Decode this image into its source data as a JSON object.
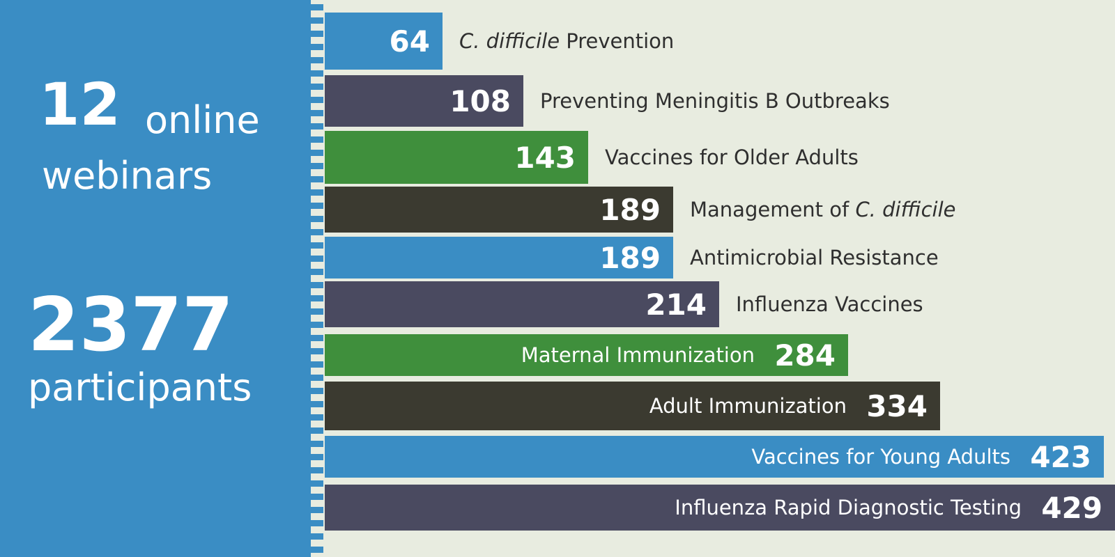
{
  "stats": {
    "webinars": {
      "number": "12",
      "word1": "online",
      "word2": "webinars"
    },
    "participants": {
      "number": "2377",
      "word": "participants"
    }
  },
  "colors": {
    "left_panel": "#3a8dc4",
    "background": "#e8ece0",
    "blue": "#3a8dc4",
    "slate": "#4a4a60",
    "green": "#3f8f3c",
    "dark": "#3b3a30",
    "label_dark": "#2f2f2f",
    "label_light": "#ffffff"
  },
  "chart_data": {
    "type": "bar",
    "orientation": "horizontal",
    "title": "",
    "xlabel": "",
    "ylabel": "",
    "grid": false,
    "xlim": [
      0,
      429
    ],
    "bars": [
      {
        "value": 64,
        "label_parts": [
          {
            "text": "C. difficile",
            "italic": true
          },
          {
            "text": " Prevention",
            "italic": false
          }
        ],
        "color": "blue"
      },
      {
        "value": 108,
        "label_parts": [
          {
            "text": "Preventing Meningitis B Outbreaks",
            "italic": false
          }
        ],
        "color": "slate"
      },
      {
        "value": 143,
        "label_parts": [
          {
            "text": "Vaccines for Older Adults",
            "italic": false
          }
        ],
        "color": "green"
      },
      {
        "value": 189,
        "label_parts": [
          {
            "text": "Management of ",
            "italic": false
          },
          {
            "text": "C. difficile",
            "italic": true
          }
        ],
        "color": "dark"
      },
      {
        "value": 189,
        "label_parts": [
          {
            "text": "Antimicrobial Resistance",
            "italic": false
          }
        ],
        "color": "blue"
      },
      {
        "value": 214,
        "label_parts": [
          {
            "text": "Influenza Vaccines",
            "italic": false
          }
        ],
        "color": "slate"
      },
      {
        "value": 284,
        "label_parts": [
          {
            "text": "Maternal Immunization",
            "italic": false
          }
        ],
        "color": "green"
      },
      {
        "value": 334,
        "label_parts": [
          {
            "text": "Adult Immunization",
            "italic": false
          }
        ],
        "color": "dark"
      },
      {
        "value": 423,
        "label_parts": [
          {
            "text": "Vaccines for Young Adults",
            "italic": false
          }
        ],
        "color": "blue"
      },
      {
        "value": 429,
        "label_parts": [
          {
            "text": "Influenza Rapid Diagnostic Testing",
            "italic": false
          }
        ],
        "color": "slate"
      }
    ]
  }
}
